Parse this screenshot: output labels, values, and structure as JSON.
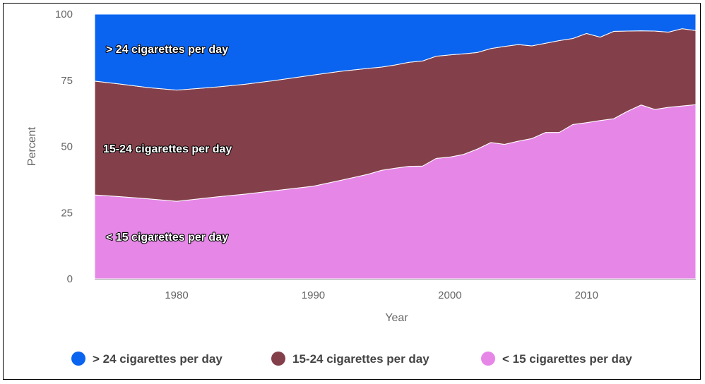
{
  "chart_data": {
    "type": "area",
    "stacked": true,
    "xlabel": "Year",
    "ylabel": "Percent",
    "xlim": [
      1974,
      2018
    ],
    "ylim": [
      0,
      100
    ],
    "xticks": [
      1980,
      1990,
      2000,
      2010
    ],
    "yticks": [
      0,
      25,
      50,
      75,
      100
    ],
    "grid": "horizontal",
    "legend_position": "bottom",
    "x": [
      1974,
      1976,
      1978,
      1980,
      1983,
      1985,
      1987,
      1990,
      1992,
      1994,
      1995,
      1996,
      1997,
      1998,
      1999,
      2000,
      2001,
      2002,
      2003,
      2004,
      2005,
      2006,
      2007,
      2008,
      2009,
      2010,
      2011,
      2012,
      2013,
      2014,
      2015,
      2016,
      2017,
      2018
    ],
    "series": [
      {
        "name": "< 15 cigarettes per day",
        "label": "< 15 cigarettes per day",
        "color": "#e687e8",
        "values": [
          31.7,
          31.0,
          30.2,
          29.3,
          31.0,
          32.0,
          33.2,
          35.0,
          37.2,
          39.5,
          41.0,
          41.8,
          42.5,
          42.6,
          45.5,
          46.0,
          47.0,
          49.0,
          51.5,
          50.8,
          52.0,
          53.0,
          55.3,
          55.3,
          58.3,
          59.0,
          59.8,
          60.5,
          63.3,
          65.7,
          64.0,
          64.8,
          65.3,
          65.8
        ]
      },
      {
        "name": "15-24 cigarettes per day",
        "label": "15-24 cigarettes per day",
        "color": "#84404a",
        "values": [
          43.0,
          42.5,
          42.0,
          42.0,
          41.5,
          41.5,
          41.6,
          42.0,
          41.2,
          40.0,
          39.0,
          39.0,
          39.3,
          39.7,
          38.6,
          38.6,
          38.0,
          36.5,
          35.5,
          37.0,
          36.5,
          35.0,
          33.7,
          34.7,
          32.5,
          33.7,
          31.5,
          33.0,
          30.3,
          28.0,
          29.6,
          28.4,
          29.2,
          28.0
        ]
      },
      {
        "name": "> 24 cigarettes per day",
        "label": "> 24 cigarettes per day",
        "color": "#0a64f0",
        "values": [
          25.3,
          26.5,
          27.8,
          28.7,
          27.5,
          26.5,
          25.2,
          23.0,
          21.6,
          20.5,
          20.0,
          19.2,
          18.2,
          17.7,
          15.9,
          15.4,
          15.0,
          14.5,
          13.0,
          12.2,
          11.5,
          12.0,
          11.0,
          10.0,
          9.2,
          7.3,
          8.7,
          6.5,
          6.4,
          6.3,
          6.4,
          6.8,
          5.5,
          6.2
        ]
      }
    ],
    "legend": [
      {
        "label": "> 24 cigarettes per day",
        "color": "#0a64f0"
      },
      {
        "label": "15-24 cigarettes per day",
        "color": "#84404a"
      },
      {
        "label": "< 15 cigarettes per day",
        "color": "#e687e8"
      }
    ]
  }
}
